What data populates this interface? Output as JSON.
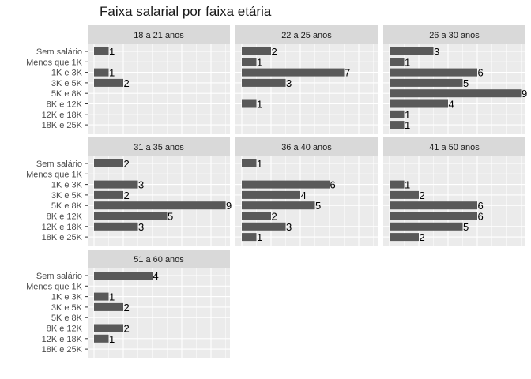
{
  "chart_data": {
    "type": "bar",
    "orientation": "horizontal",
    "title": "Faixa salarial por faixa etária",
    "categories": [
      "Sem salário",
      "Menos que 1K",
      "1K e 3K",
      "3K e 5K",
      "5K e 8K",
      "8K e 12K",
      "12K e 18K",
      "18K e 25K"
    ],
    "xlim": [
      0,
      9
    ],
    "xlabel": "",
    "ylabel": "",
    "grid": true,
    "facets": [
      {
        "name": "18 a 21 anos",
        "values": [
          1,
          0,
          1,
          2,
          0,
          0,
          0,
          0
        ]
      },
      {
        "name": "22 a 25 anos",
        "values": [
          2,
          1,
          7,
          3,
          0,
          1,
          0,
          0
        ]
      },
      {
        "name": "26 a 30 anos",
        "values": [
          3,
          1,
          6,
          5,
          9,
          4,
          1,
          1
        ]
      },
      {
        "name": "31 a 35 anos",
        "values": [
          2,
          0,
          3,
          2,
          9,
          5,
          3,
          0
        ]
      },
      {
        "name": "36 a 40 anos",
        "values": [
          1,
          0,
          6,
          4,
          5,
          2,
          3,
          1
        ]
      },
      {
        "name": "41 a 50 anos",
        "values": [
          0,
          0,
          1,
          2,
          6,
          6,
          5,
          2
        ]
      },
      {
        "name": "51 a 60 anos",
        "values": [
          4,
          0,
          1,
          2,
          0,
          2,
          1,
          0
        ]
      }
    ],
    "colors": {
      "bar": "#595959",
      "panel": "#ebebeb",
      "strip": "#d9d9d9",
      "grid": "#ffffff"
    }
  }
}
